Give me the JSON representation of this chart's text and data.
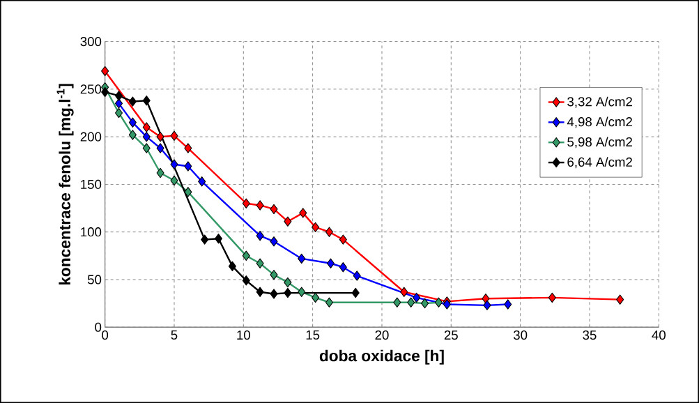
{
  "chart_data": {
    "type": "line",
    "xlabel": "doba oxidace [h]",
    "ylabel": "koncentrace fenolu [mg.l$^{-1}$]",
    "xlim": [
      0,
      40
    ],
    "ylim": [
      0,
      300
    ],
    "xticks": [
      0,
      5,
      10,
      15,
      20,
      25,
      30,
      35,
      40
    ],
    "yticks": [
      0,
      50,
      100,
      150,
      200,
      250,
      300
    ],
    "grid": true,
    "legend": "top right",
    "marker": "diamond",
    "line_style": "solid",
    "series": [
      {
        "name": "3,32 A/cm2",
        "color": "#ff0000",
        "x": [
          0,
          3,
          4,
          5,
          6,
          10.2,
          11.2,
          12.2,
          13.2,
          14.3,
          15.2,
          16.2,
          17.2,
          21.6,
          24.7,
          27.5,
          32.3,
          37.2
        ],
        "values": [
          269,
          210,
          200,
          201,
          188,
          130,
          128,
          124,
          111,
          120,
          105,
          100,
          92,
          37,
          27,
          30,
          31,
          29
        ]
      },
      {
        "name": "4,98 A/cm2",
        "color": "#0000ff",
        "x": [
          1,
          2,
          3,
          4,
          5,
          6,
          7,
          11.2,
          12.2,
          14.2,
          16.3,
          17.2,
          18.2,
          22.5,
          24.7,
          27.6,
          29.1
        ],
        "values": [
          235,
          215,
          200,
          188,
          171,
          169,
          153,
          96,
          90,
          72,
          67,
          63,
          54,
          31,
          24,
          23,
          24
        ]
      },
      {
        "name": "5,98 A/cm2",
        "color": "#339966",
        "x": [
          0,
          1,
          2,
          3,
          4,
          5,
          6,
          10.2,
          11.2,
          12.2,
          13.2,
          14.2,
          15.2,
          16.2,
          21.1,
          22.1,
          23.1,
          24.1
        ],
        "values": [
          252,
          225,
          202,
          188,
          162,
          154,
          142,
          75,
          67,
          55,
          47,
          37,
          31,
          26,
          26,
          26,
          25,
          26
        ]
      },
      {
        "name": "6,64 A/cm2",
        "color": "#000000",
        "x": [
          0,
          1,
          2,
          3,
          7.2,
          8.2,
          9.2,
          10.2,
          11.2,
          12.2,
          13.2,
          18.1
        ],
        "values": [
          247,
          243,
          237,
          238,
          92,
          93,
          64,
          49,
          37,
          35,
          36,
          36
        ]
      }
    ]
  }
}
